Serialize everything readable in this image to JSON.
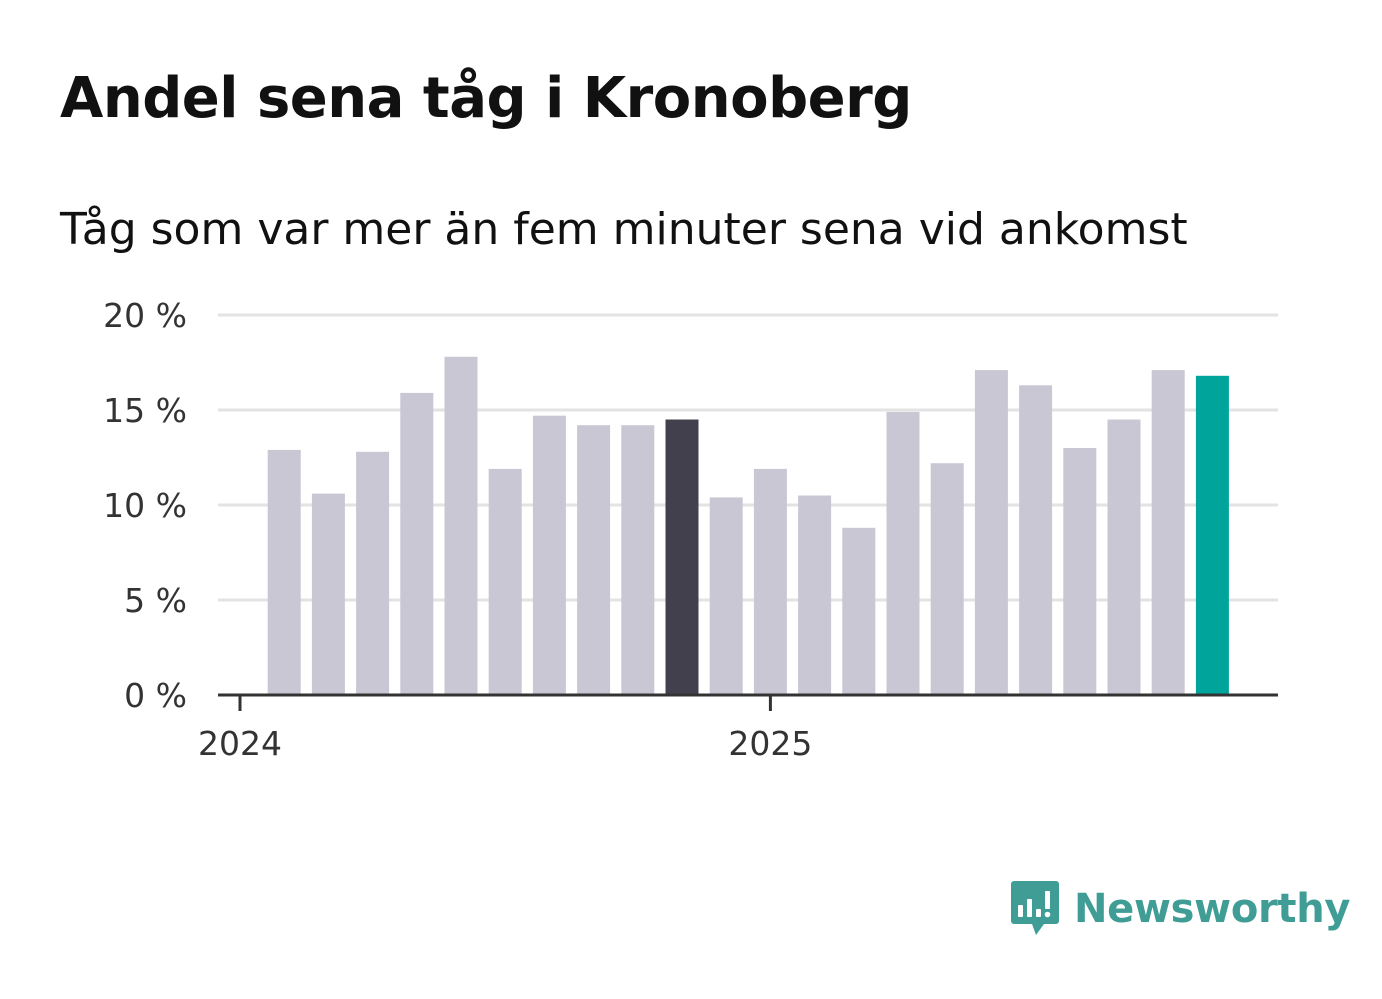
{
  "title": "Andel sena tåg i Kronoberg",
  "subtitle": "Tåg som var mer än fem minuter sena vid ankomst",
  "brand": {
    "name": "Newsworthy",
    "icon": "newsworthy-logo-icon",
    "color": "#3f9d96"
  },
  "colors": {
    "default_bar": "#c9c7d3",
    "highlight_bar": "#42404c",
    "latest_bar": "#00a49a",
    "grid": "#e3e3e3",
    "axis": "#333333"
  },
  "chart_data": {
    "type": "bar",
    "title": "Andel sena tåg i Kronoberg",
    "subtitle": "Tåg som var mer än fem minuter sena vid ankomst",
    "xlabel": "",
    "ylabel": "",
    "ylim": [
      0,
      20
    ],
    "yticks": [
      0,
      5,
      10,
      15,
      20
    ],
    "ytick_labels": [
      "0 %",
      "5 %",
      "10 %",
      "15 %",
      "20 %"
    ],
    "grid": true,
    "categories": [
      "2024-01",
      "2024-02",
      "2024-03",
      "2024-04",
      "2024-05",
      "2024-06",
      "2024-07",
      "2024-08",
      "2024-09",
      "2024-10",
      "2024-11",
      "2024-12",
      "2025-01",
      "2025-02",
      "2025-03",
      "2025-04",
      "2025-05",
      "2025-06",
      "2025-07",
      "2025-08",
      "2025-09",
      "2025-10",
      "2025-11",
      "2025-12"
    ],
    "values": [
      null,
      12.9,
      10.6,
      12.8,
      15.9,
      17.8,
      11.9,
      14.7,
      14.2,
      14.2,
      14.5,
      10.4,
      11.9,
      10.5,
      8.8,
      14.9,
      12.2,
      17.1,
      16.3,
      13.0,
      14.5,
      17.1,
      16.8,
      null
    ],
    "highlight_index": 10,
    "latest_index": 22,
    "x_tick_labels": [
      {
        "label": "2024",
        "index": 0
      },
      {
        "label": "2025",
        "index": 12
      }
    ]
  }
}
